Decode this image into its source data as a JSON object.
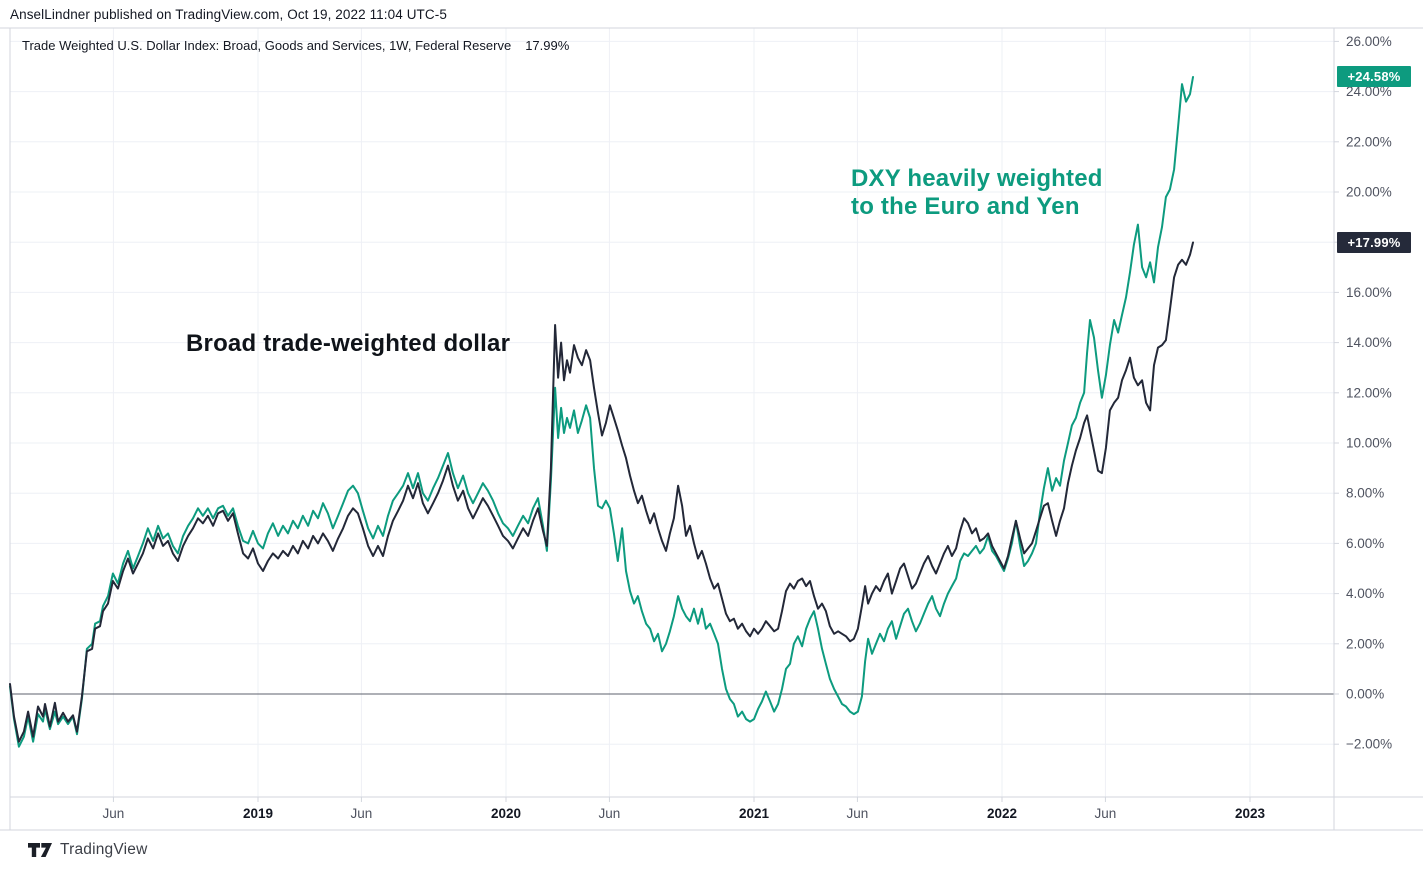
{
  "header": {
    "published_line": "AnselLindner published on TradingView.com, Oct 19, 2022 11:04 UTC-5"
  },
  "legend": {
    "title": "Trade Weighted U.S. Dollar Index: Broad, Goods and Services, 1W, Federal Reserve",
    "value": "17.99%"
  },
  "annotations": {
    "broad_label": "Broad trade-weighted dollar",
    "dxy_label_line1": "DXY heavily weighted",
    "dxy_label_line2": "to the Euro and Yen"
  },
  "price_labels": {
    "dxy": "+24.58%",
    "broad": "+17.99%"
  },
  "footer": {
    "brand": "TradingView"
  },
  "colors": {
    "teal": "#0d9b7f",
    "black_line": "#232838",
    "badge_dark": "#252a3a",
    "grid": "#eef0f6",
    "frame": "#d3d6de",
    "zero_line": "#5d616c",
    "axis_label": "#4f5360",
    "axis_label_bold": "#131722",
    "background": "#ffffff"
  },
  "chart_data": {
    "type": "line",
    "title": "Trade Weighted U.S. Dollar Index: Broad, Goods and Services, 1W, Federal Reserve",
    "xlabel": "",
    "ylabel": "",
    "x_unit": "decimal_year",
    "xlim": [
      2018.0,
      2023.34
    ],
    "ylim": [
      -4.1,
      26.5
    ],
    "grid": true,
    "y_ticks": [
      -2,
      0,
      2,
      4,
      6,
      8,
      10,
      12,
      14,
      16,
      18,
      20,
      22,
      24,
      26
    ],
    "x_ticks": [
      {
        "t": 2018.417,
        "label": "Jun",
        "bold": false
      },
      {
        "t": 2019.0,
        "label": "2019",
        "bold": true
      },
      {
        "t": 2019.417,
        "label": "Jun",
        "bold": false
      },
      {
        "t": 2020.0,
        "label": "2020",
        "bold": true
      },
      {
        "t": 2020.417,
        "label": "Jun",
        "bold": false
      },
      {
        "t": 2021.0,
        "label": "2021",
        "bold": true
      },
      {
        "t": 2021.417,
        "label": "Jun",
        "bold": false
      },
      {
        "t": 2022.0,
        "label": "2022",
        "bold": true
      },
      {
        "t": 2022.417,
        "label": "Jun",
        "bold": false
      },
      {
        "t": 2023.0,
        "label": "2023",
        "bold": true
      }
    ],
    "last_values": {
      "dxy": "+24.58%",
      "broad": "+17.99%"
    },
    "x": [
      2018.0,
      2018.016,
      2018.036,
      2018.056,
      2018.073,
      2018.093,
      2018.113,
      2018.133,
      2018.141,
      2018.161,
      2018.181,
      2018.194,
      2018.214,
      2018.234,
      2018.254,
      2018.27,
      2018.29,
      2018.31,
      2018.331,
      2018.343,
      2018.363,
      2018.375,
      2018.395,
      2018.415,
      2018.435,
      2018.456,
      2018.476,
      2018.496,
      2018.516,
      2018.536,
      2018.556,
      2018.577,
      2018.597,
      2018.617,
      2018.637,
      2018.657,
      2018.677,
      2018.698,
      2018.718,
      2018.738,
      2018.758,
      2018.778,
      2018.798,
      2018.819,
      2018.839,
      2018.859,
      2018.879,
      2018.899,
      2018.919,
      2018.94,
      2018.96,
      2018.98,
      2019.0,
      2019.02,
      2019.04,
      2019.06,
      2019.081,
      2019.101,
      2019.121,
      2019.141,
      2019.161,
      2019.181,
      2019.202,
      2019.222,
      2019.242,
      2019.262,
      2019.282,
      2019.302,
      2019.323,
      2019.343,
      2019.363,
      2019.383,
      2019.403,
      2019.423,
      2019.444,
      2019.464,
      2019.484,
      2019.504,
      2019.524,
      2019.544,
      2019.565,
      2019.585,
      2019.605,
      2019.625,
      2019.645,
      2019.665,
      2019.685,
      2019.706,
      2019.726,
      2019.746,
      2019.766,
      2019.786,
      2019.806,
      2019.827,
      2019.847,
      2019.867,
      2019.887,
      2019.907,
      2019.927,
      2019.948,
      2019.968,
      2019.988,
      2020.008,
      2020.028,
      2020.048,
      2020.069,
      2020.089,
      2020.109,
      2020.129,
      2020.149,
      2020.165,
      2020.181,
      2020.198,
      2020.21,
      2020.222,
      2020.234,
      2020.246,
      2020.258,
      2020.274,
      2020.29,
      2020.306,
      2020.323,
      2020.339,
      2020.355,
      2020.371,
      2020.387,
      2020.403,
      2020.419,
      2020.435,
      2020.451,
      2020.468,
      2020.484,
      2020.5,
      2020.516,
      2020.532,
      2020.548,
      2020.565,
      2020.581,
      2020.597,
      2020.613,
      2020.629,
      2020.645,
      2020.661,
      2020.677,
      2020.694,
      2020.71,
      2020.726,
      2020.742,
      2020.758,
      2020.774,
      2020.79,
      2020.806,
      2020.823,
      2020.839,
      2020.855,
      2020.871,
      2020.887,
      2020.903,
      2020.919,
      2020.935,
      2020.952,
      2020.968,
      2020.984,
      2021.0,
      2021.016,
      2021.032,
      2021.048,
      2021.065,
      2021.081,
      2021.097,
      2021.113,
      2021.129,
      2021.145,
      2021.161,
      2021.177,
      2021.194,
      2021.21,
      2021.226,
      2021.242,
      2021.258,
      2021.274,
      2021.29,
      2021.306,
      2021.323,
      2021.339,
      2021.355,
      2021.371,
      2021.387,
      2021.403,
      2021.419,
      2021.435,
      2021.448,
      2021.46,
      2021.476,
      2021.492,
      2021.508,
      2021.524,
      2021.54,
      2021.556,
      2021.573,
      2021.589,
      2021.605,
      2021.621,
      2021.637,
      2021.653,
      2021.669,
      2021.685,
      2021.702,
      2021.718,
      2021.734,
      2021.75,
      2021.766,
      2021.782,
      2021.798,
      2021.815,
      2021.831,
      2021.847,
      2021.863,
      2021.879,
      2021.895,
      2021.911,
      2021.927,
      2021.944,
      2021.96,
      2021.976,
      2021.992,
      2022.008,
      2022.024,
      2022.04,
      2022.056,
      2022.073,
      2022.089,
      2022.105,
      2022.121,
      2022.137,
      2022.153,
      2022.169,
      2022.185,
      2022.202,
      2022.218,
      2022.234,
      2022.25,
      2022.266,
      2022.282,
      2022.298,
      2022.315,
      2022.331,
      2022.343,
      2022.355,
      2022.371,
      2022.387,
      2022.403,
      2022.419,
      2022.435,
      2022.452,
      2022.468,
      2022.484,
      2022.5,
      2022.516,
      2022.532,
      2022.548,
      2022.565,
      2022.581,
      2022.597,
      2022.613,
      2022.629,
      2022.645,
      2022.661,
      2022.677,
      2022.694,
      2022.71,
      2022.726,
      2022.742,
      2022.758,
      2022.77
    ],
    "series": [
      {
        "name": "DXY (heavily weighted to the Euro and Yen)",
        "color": "#0d9b7f",
        "values": [
          0.3,
          -1.0,
          -2.1,
          -1.7,
          -0.9,
          -1.9,
          -0.8,
          -1.1,
          -0.6,
          -1.4,
          -0.7,
          -1.2,
          -0.9,
          -1.2,
          -0.9,
          -1.6,
          -0.2,
          1.8,
          2.0,
          2.8,
          2.9,
          3.5,
          3.9,
          4.8,
          4.4,
          5.2,
          5.7,
          5.0,
          5.5,
          6.0,
          6.6,
          6.1,
          6.7,
          6.2,
          6.4,
          5.9,
          5.6,
          6.3,
          6.7,
          7.0,
          7.4,
          7.1,
          7.4,
          7.0,
          7.4,
          7.5,
          7.1,
          7.4,
          6.7,
          6.1,
          6.0,
          6.5,
          6.0,
          5.8,
          6.4,
          6.8,
          6.3,
          6.7,
          6.4,
          6.9,
          6.6,
          7.1,
          6.7,
          7.3,
          7.0,
          7.6,
          7.2,
          6.6,
          7.1,
          7.6,
          8.1,
          8.3,
          8.0,
          7.3,
          6.6,
          6.2,
          6.7,
          6.3,
          7.1,
          7.7,
          8.0,
          8.3,
          8.8,
          8.2,
          8.8,
          8.0,
          7.7,
          8.2,
          8.6,
          9.1,
          9.6,
          8.8,
          8.2,
          8.7,
          8.0,
          7.6,
          8.0,
          8.4,
          8.1,
          7.7,
          7.2,
          6.8,
          6.6,
          6.3,
          6.7,
          7.1,
          6.8,
          7.4,
          7.8,
          6.7,
          5.7,
          8.5,
          12.2,
          10.2,
          11.4,
          10.4,
          11.0,
          10.6,
          11.3,
          10.4,
          10.9,
          11.5,
          11.0,
          9.0,
          7.5,
          7.4,
          7.7,
          7.4,
          6.4,
          5.3,
          6.6,
          4.9,
          4.1,
          3.6,
          3.9,
          3.3,
          2.8,
          2.6,
          2.1,
          2.4,
          1.7,
          2.0,
          2.5,
          3.1,
          3.9,
          3.4,
          3.1,
          2.9,
          3.4,
          2.8,
          3.4,
          2.6,
          2.8,
          2.4,
          2.0,
          1.0,
          0.2,
          -0.2,
          -0.4,
          -0.9,
          -0.7,
          -1.0,
          -1.1,
          -1.0,
          -0.6,
          -0.3,
          0.1,
          -0.3,
          -0.7,
          -0.4,
          0.2,
          1.0,
          1.2,
          2.0,
          2.3,
          1.9,
          2.6,
          3.0,
          3.3,
          2.6,
          1.8,
          1.2,
          0.6,
          0.2,
          -0.1,
          -0.4,
          -0.5,
          -0.7,
          -0.8,
          -0.7,
          -0.1,
          1.3,
          2.2,
          1.6,
          2.0,
          2.4,
          2.1,
          2.6,
          2.9,
          2.2,
          2.7,
          3.2,
          3.4,
          2.9,
          2.5,
          2.8,
          3.2,
          3.6,
          3.9,
          3.4,
          3.1,
          3.6,
          4.0,
          4.3,
          4.6,
          5.3,
          5.6,
          5.5,
          5.7,
          5.9,
          5.6,
          5.8,
          6.3,
          5.7,
          5.5,
          5.2,
          4.9,
          5.4,
          6.0,
          6.9,
          5.9,
          5.1,
          5.3,
          5.6,
          6.0,
          7.2,
          8.2,
          9.0,
          8.1,
          8.6,
          8.3,
          9.3,
          10.0,
          10.7,
          11.0,
          11.6,
          12.0,
          13.6,
          14.9,
          14.2,
          12.9,
          11.8,
          12.7,
          13.9,
          14.9,
          14.4,
          15.1,
          15.8,
          16.8,
          17.9,
          18.7,
          17.0,
          16.6,
          17.2,
          16.4,
          17.8,
          18.6,
          19.8,
          20.1,
          20.9,
          22.6,
          24.3,
          23.6,
          23.9,
          24.58
        ]
      },
      {
        "name": "Broad trade-weighted dollar",
        "color": "#232838",
        "values": [
          0.4,
          -0.9,
          -1.9,
          -1.5,
          -0.7,
          -1.7,
          -0.5,
          -0.9,
          -0.4,
          -1.3,
          -0.35,
          -1.1,
          -0.75,
          -1.1,
          -0.85,
          -1.5,
          -0.1,
          1.7,
          1.8,
          2.6,
          2.7,
          3.3,
          3.6,
          4.5,
          4.2,
          4.9,
          5.4,
          4.8,
          5.2,
          5.6,
          6.2,
          5.8,
          6.4,
          5.9,
          6.1,
          5.6,
          5.3,
          5.9,
          6.3,
          6.6,
          7.0,
          6.8,
          7.1,
          6.7,
          7.2,
          7.3,
          6.9,
          7.2,
          6.4,
          5.6,
          5.4,
          5.8,
          5.2,
          4.9,
          5.3,
          5.6,
          5.4,
          5.7,
          5.5,
          5.9,
          5.6,
          6.1,
          5.8,
          6.3,
          6.0,
          6.4,
          6.1,
          5.7,
          6.2,
          6.6,
          7.1,
          7.4,
          7.2,
          6.6,
          5.9,
          5.5,
          5.9,
          5.5,
          6.3,
          6.9,
          7.3,
          7.7,
          8.3,
          7.8,
          8.4,
          7.6,
          7.2,
          7.6,
          8.0,
          8.5,
          9.1,
          8.3,
          7.7,
          8.1,
          7.4,
          7.0,
          7.4,
          7.8,
          7.5,
          7.1,
          6.7,
          6.3,
          6.1,
          5.8,
          6.2,
          6.6,
          6.3,
          6.9,
          7.4,
          6.5,
          5.9,
          9.0,
          14.7,
          12.6,
          14.0,
          12.5,
          13.3,
          12.8,
          13.9,
          13.4,
          13.1,
          13.7,
          13.3,
          12.2,
          11.2,
          10.3,
          10.8,
          11.5,
          11.0,
          10.5,
          9.9,
          9.4,
          8.7,
          8.1,
          7.6,
          7.9,
          7.3,
          6.8,
          7.2,
          6.6,
          6.1,
          5.7,
          6.4,
          7.0,
          8.3,
          7.5,
          6.3,
          6.7,
          6.0,
          5.4,
          5.7,
          5.2,
          4.6,
          4.2,
          4.4,
          3.8,
          3.2,
          2.9,
          3.0,
          2.6,
          2.8,
          2.5,
          2.3,
          2.6,
          2.4,
          2.6,
          2.9,
          2.7,
          2.5,
          2.6,
          3.3,
          4.1,
          4.4,
          4.2,
          4.5,
          4.6,
          4.3,
          4.5,
          3.9,
          3.4,
          3.6,
          3.3,
          2.7,
          2.4,
          2.5,
          2.4,
          2.3,
          2.1,
          2.2,
          2.6,
          3.5,
          4.3,
          3.6,
          4.0,
          4.3,
          4.1,
          4.5,
          4.8,
          4.0,
          4.5,
          5.0,
          5.2,
          4.7,
          4.2,
          4.4,
          4.8,
          5.2,
          5.5,
          5.1,
          4.8,
          5.2,
          5.6,
          5.9,
          5.5,
          5.8,
          6.5,
          7.0,
          6.8,
          6.4,
          6.6,
          6.1,
          6.2,
          6.4,
          5.9,
          5.6,
          5.3,
          5.0,
          5.5,
          6.2,
          6.9,
          6.2,
          5.6,
          5.8,
          6.0,
          6.5,
          7.0,
          7.5,
          7.6,
          6.9,
          6.3,
          6.9,
          7.4,
          8.4,
          9.1,
          9.7,
          10.2,
          10.8,
          11.1,
          10.5,
          9.7,
          8.9,
          8.8,
          9.8,
          11.3,
          11.6,
          11.8,
          12.5,
          12.9,
          13.4,
          12.6,
          12.3,
          12.5,
          11.6,
          11.3,
          13.1,
          13.8,
          13.9,
          14.1,
          15.3,
          16.6,
          17.1,
          17.3,
          17.1,
          17.5,
          17.99
        ]
      }
    ]
  }
}
